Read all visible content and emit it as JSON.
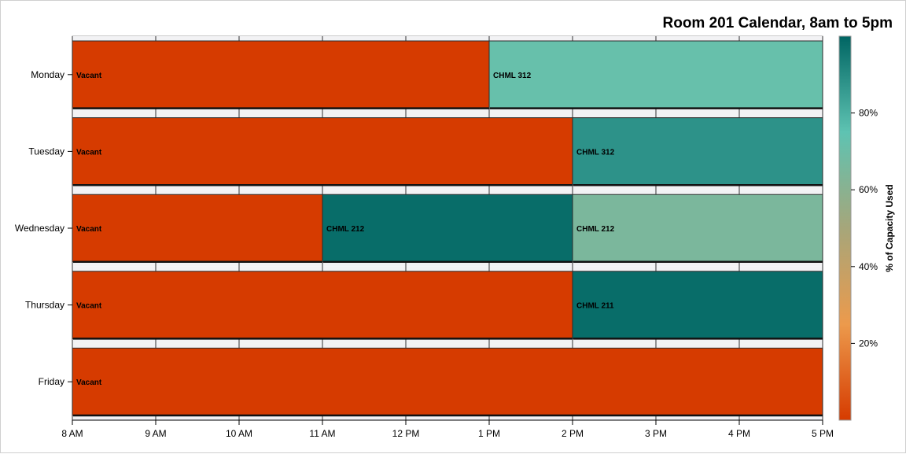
{
  "chart_data": {
    "type": "bar",
    "orientation": "horizontal",
    "title": "Room 201 Calendar, 8am to 5pm",
    "categories": [
      "Monday",
      "Tuesday",
      "Wednesday",
      "Thursday",
      "Friday"
    ],
    "x_ticks": [
      "8 AM",
      "9 AM",
      "10 AM",
      "11 AM",
      "12 PM",
      "1 PM",
      "2 PM",
      "3 PM",
      "4 PM",
      "5 PM"
    ],
    "xlim": [
      8,
      17
    ],
    "segments": [
      {
        "day": "Monday",
        "start": 8,
        "end": 13,
        "label": "Vacant",
        "capacity_pct": 0
      },
      {
        "day": "Monday",
        "start": 13,
        "end": 17,
        "label": "CHML 312",
        "capacity_pct": 72
      },
      {
        "day": "Tuesday",
        "start": 8,
        "end": 14,
        "label": "Vacant",
        "capacity_pct": 0
      },
      {
        "day": "Tuesday",
        "start": 14,
        "end": 17,
        "label": "CHML 312",
        "capacity_pct": 88
      },
      {
        "day": "Wednesday",
        "start": 8,
        "end": 11,
        "label": "Vacant",
        "capacity_pct": 0
      },
      {
        "day": "Wednesday",
        "start": 11,
        "end": 14,
        "label": "CHML 212",
        "capacity_pct": 98
      },
      {
        "day": "Wednesday",
        "start": 14,
        "end": 17,
        "label": "CHML 212",
        "capacity_pct": 65
      },
      {
        "day": "Thursday",
        "start": 8,
        "end": 14,
        "label": "Vacant",
        "capacity_pct": 0
      },
      {
        "day": "Thursday",
        "start": 14,
        "end": 17,
        "label": "CHML 211",
        "capacity_pct": 98
      },
      {
        "day": "Friday",
        "start": 8,
        "end": 17,
        "label": "Vacant",
        "capacity_pct": 0
      }
    ],
    "colorbar": {
      "title": "% of Capacity Used",
      "ticks": [
        "20%",
        "40%",
        "60%",
        "80%"
      ],
      "tick_values": [
        20,
        40,
        60,
        80
      ],
      "range": [
        0,
        100
      ],
      "placement": "right"
    },
    "colors": {
      "low": "#d63b00",
      "mid_low": "#ec9a4c",
      "mid": "#a6a67a",
      "mid_high": "#5ec3b2",
      "high": "#006563"
    },
    "grid": false
  }
}
